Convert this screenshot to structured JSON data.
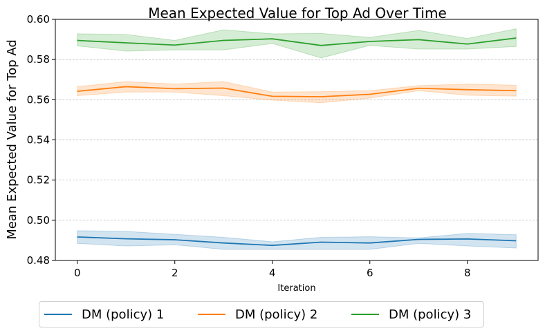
{
  "chart_data": {
    "type": "line",
    "title": "Mean Expected Value for Top Ad Over Time",
    "xlabel": "Iteration",
    "ylabel": "Mean Expected Value for Top Ad",
    "xlim": [
      -0.45,
      9.45
    ],
    "ylim": [
      0.48,
      0.6
    ],
    "xticks": [
      0,
      2,
      4,
      6,
      8
    ],
    "yticks": [
      0.48,
      0.5,
      0.52,
      0.54,
      0.56,
      0.58,
      0.6
    ],
    "xtick_labels": [
      "0",
      "2",
      "4",
      "6",
      "8"
    ],
    "ytick_labels": [
      "0.48",
      "0.50",
      "0.52",
      "0.54",
      "0.56",
      "0.58",
      "0.60"
    ],
    "grid": "horizontal dashed",
    "legend_position": "below",
    "x": [
      0,
      1,
      2,
      3,
      4,
      5,
      6,
      7,
      8,
      9
    ],
    "series": [
      {
        "name": "DM (policy) 1",
        "color": "#1f77b4",
        "values": [
          0.4917,
          0.4908,
          0.4903,
          0.4887,
          0.4875,
          0.4891,
          0.4887,
          0.4905,
          0.4907,
          0.4898
        ],
        "lower": [
          0.4885,
          0.4872,
          0.4878,
          0.4855,
          0.4855,
          0.4855,
          0.4855,
          0.4885,
          0.4872,
          0.4862
        ],
        "upper": [
          0.4948,
          0.4945,
          0.493,
          0.4915,
          0.4893,
          0.4915,
          0.4918,
          0.4912,
          0.4935,
          0.4928
        ]
      },
      {
        "name": "DM (policy) 2",
        "color": "#ff7f0e",
        "values": [
          0.5642,
          0.5665,
          0.5655,
          0.5658,
          0.5617,
          0.5615,
          0.5627,
          0.5657,
          0.565,
          0.5645
        ],
        "lower": [
          0.562,
          0.5638,
          0.5638,
          0.562,
          0.5598,
          0.5585,
          0.5608,
          0.5645,
          0.5622,
          0.5618
        ],
        "upper": [
          0.5665,
          0.569,
          0.5678,
          0.569,
          0.5638,
          0.564,
          0.5645,
          0.567,
          0.5678,
          0.5672
        ]
      },
      {
        "name": "DM (policy) 3",
        "color": "#2ca02c",
        "values": [
          0.5895,
          0.5883,
          0.5872,
          0.5895,
          0.5903,
          0.587,
          0.589,
          0.5899,
          0.5877,
          0.5907
        ],
        "lower": [
          0.5868,
          0.5842,
          0.5848,
          0.5848,
          0.588,
          0.5808,
          0.587,
          0.5852,
          0.5852,
          0.5865
        ],
        "upper": [
          0.5928,
          0.5925,
          0.5895,
          0.5948,
          0.5928,
          0.593,
          0.591,
          0.5945,
          0.5905,
          0.5953
        ]
      }
    ]
  }
}
